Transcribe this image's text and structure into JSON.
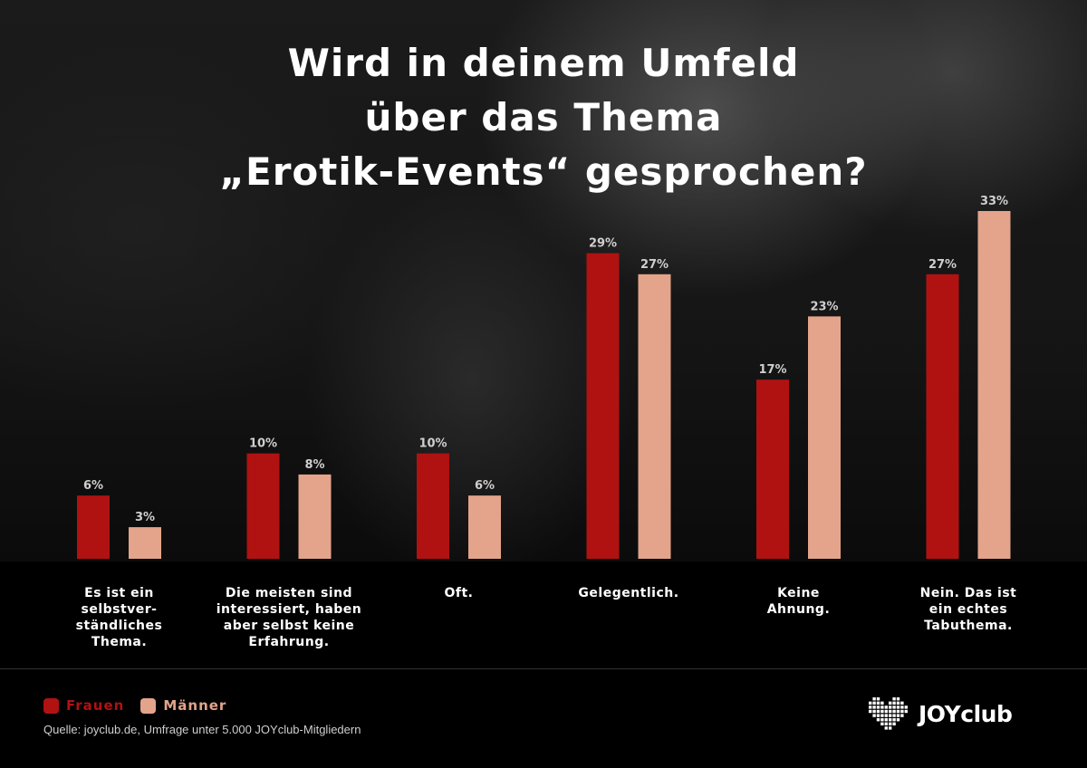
{
  "title_lines": [
    "Wird in deinem Umfeld",
    "über das Thema",
    "„Erotik-Events“ gesprochen?"
  ],
  "colors": {
    "frauen": "#b01212",
    "maenner": "#e3a48b",
    "value_label": "#cfcfcf"
  },
  "chart_data": {
    "type": "bar",
    "title": "Wird in deinem Umfeld über das Thema „Erotik-Events“ gesprochen?",
    "categories": [
      "Es ist ein\nselbstver-\nständliches\nThema.",
      "Die meisten sind\ninteressiert, haben\naber selbst keine\nErfahrung.",
      "Oft.",
      "Gelegentlich.",
      "Keine\nAhnung.",
      "Nein. Das ist\nein echtes\nTabuthema."
    ],
    "series": [
      {
        "name": "Frauen",
        "values": [
          6,
          10,
          10,
          29,
          17,
          27
        ]
      },
      {
        "name": "Männer",
        "values": [
          3,
          8,
          6,
          27,
          23,
          33
        ]
      }
    ],
    "value_suffix": "%",
    "ylim": [
      0,
      33
    ],
    "grid": false,
    "legend_position": "bottom-left"
  },
  "legend": {
    "frauen": "Frauen",
    "maenner": "Männer"
  },
  "source": "Quelle: joyclub.de, Umfrage unter 5.000 JOYclub-Mitgliedern",
  "logo": {
    "text": "JOYclub",
    "icon": "pixel-heart-icon"
  }
}
